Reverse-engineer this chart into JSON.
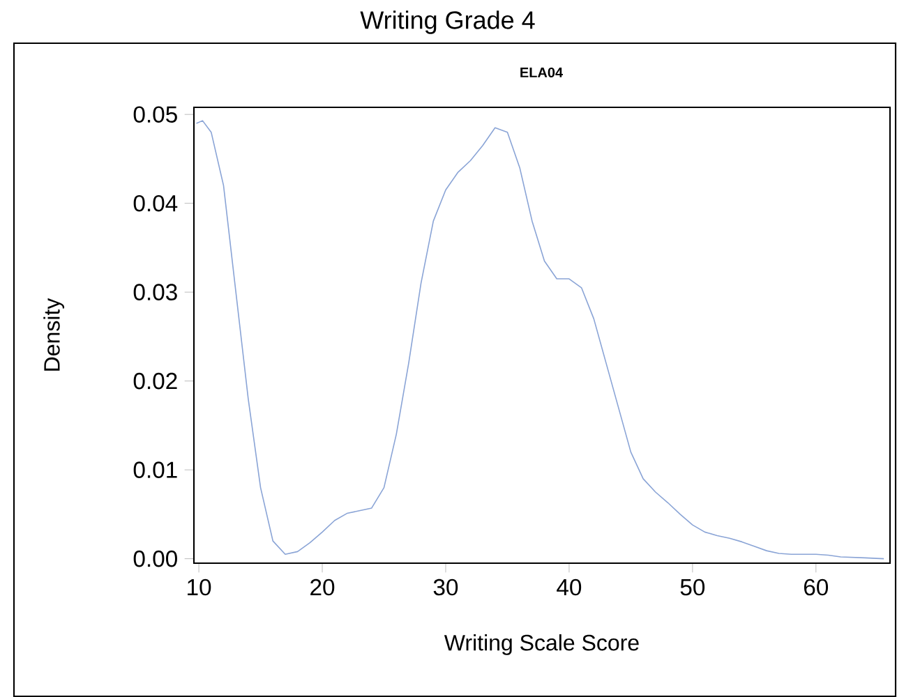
{
  "chart_data": {
    "type": "line",
    "title": "Writing Grade 4",
    "subtitle": "ELA04",
    "xlabel": "Writing Scale Score",
    "ylabel": "Density",
    "xlim": [
      9.6,
      66
    ],
    "ylim": [
      -0.0005,
      0.0508
    ],
    "xticks": [
      10,
      20,
      30,
      40,
      50,
      60
    ],
    "yticks": [
      {
        "value": 0,
        "label": "0.00"
      },
      {
        "value": 0.01,
        "label": "0.01"
      },
      {
        "value": 0.02,
        "label": "0.02"
      },
      {
        "value": 0.03,
        "label": "0.03"
      },
      {
        "value": 0.04,
        "label": "0.04"
      },
      {
        "value": 0.05,
        "label": "0.05"
      }
    ],
    "grid": false,
    "series": [
      {
        "color": "#8aa4d6",
        "x": [
          9.8,
          10.3,
          11,
          12,
          13,
          14,
          15,
          16,
          17,
          18,
          19,
          20,
          21,
          22,
          23,
          24,
          25,
          26,
          27,
          28,
          29,
          30,
          31,
          32,
          33,
          34,
          35,
          36,
          37,
          38,
          39,
          40,
          41,
          42,
          43,
          44,
          45,
          46,
          47,
          48,
          49,
          50,
          51,
          52,
          53,
          54,
          55,
          56,
          57,
          58,
          60,
          61,
          62,
          64,
          65.5
        ],
        "values": [
          0.049,
          0.0493,
          0.048,
          0.042,
          0.03,
          0.018,
          0.008,
          0.002,
          0.0005,
          0.0008,
          0.0018,
          0.003,
          0.0043,
          0.0051,
          0.0054,
          0.0057,
          0.008,
          0.014,
          0.022,
          0.031,
          0.038,
          0.0415,
          0.0435,
          0.0448,
          0.0465,
          0.0485,
          0.048,
          0.044,
          0.038,
          0.0335,
          0.0315,
          0.0315,
          0.0305,
          0.027,
          0.022,
          0.017,
          0.012,
          0.009,
          0.0075,
          0.0063,
          0.005,
          0.0038,
          0.003,
          0.0026,
          0.0023,
          0.0019,
          0.0014,
          0.0009,
          0.0006,
          0.0005,
          0.0005,
          0.0004,
          0.0002,
          0.0001,
          0.0
        ]
      }
    ]
  }
}
